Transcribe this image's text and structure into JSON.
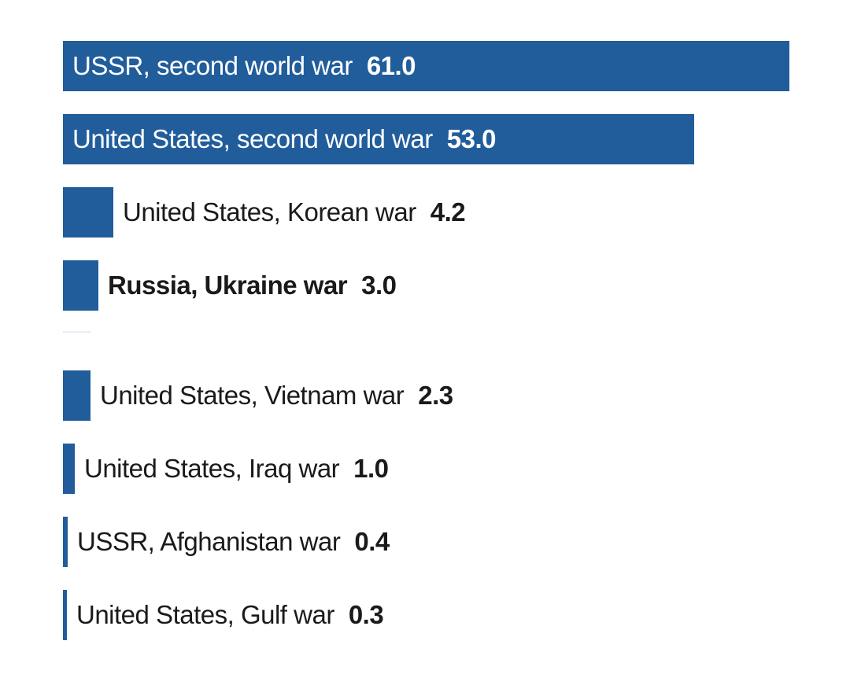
{
  "chart_data": {
    "type": "bar",
    "orientation": "horizontal",
    "bar_color": "#215d9b",
    "label_color": "#1a1a1a",
    "label_on_bar_color": "#ffffff",
    "xlim": [
      0,
      61
    ],
    "categories": [
      "USSR, second world war",
      "United States, second world war",
      "United States, Korean war",
      "Russia, Ukraine war",
      "United States, Vietnam war",
      "United States, Iraq war",
      "USSR, Afghanistan war",
      "United States, Gulf war"
    ],
    "values": [
      61.0,
      53.0,
      4.2,
      3.0,
      2.3,
      1.0,
      0.4,
      0.3
    ],
    "value_labels": [
      "61.0",
      "53.0",
      "4.2",
      "3.0",
      "2.3",
      "1.0",
      "0.4",
      "0.3"
    ],
    "highlighted": "Russia, Ukraine war"
  }
}
